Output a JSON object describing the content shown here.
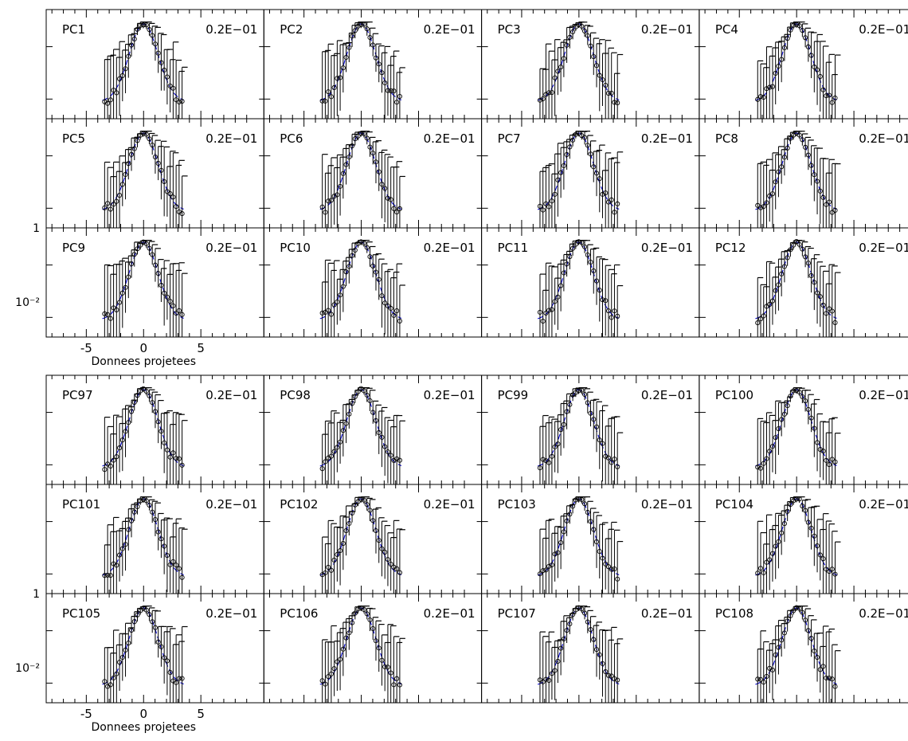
{
  "chart_data": {
    "type": "scatter",
    "description_scale": "log",
    "xlim": [
      -8.5,
      10.5
    ],
    "x_ticks": [
      "-5",
      "0",
      "5"
    ],
    "y_ticks": [
      "1",
      "10⁻²"
    ],
    "xlabel": "Donnees projetees",
    "corner_label": "0.2E−01",
    "colors": {
      "data": "#000000",
      "model": "#0000cc",
      "frame": "#000000"
    },
    "blocks": [
      {
        "panels": [
          "PC1",
          "PC2",
          "PC3",
          "PC4",
          "PC5",
          "PC6",
          "PC7",
          "PC8",
          "PC9",
          "PC10",
          "PC11",
          "PC12"
        ]
      },
      {
        "panels": [
          "PC97",
          "PC98",
          "PC99",
          "PC100",
          "PC101",
          "PC102",
          "PC103",
          "PC104",
          "PC105",
          "PC106",
          "PC107",
          "PC108"
        ]
      }
    ],
    "series": [
      {
        "name": "",
        "style": "open circles with vertical error bars"
      },
      {
        "name": "",
        "style": "dashed blue Gaussian curve"
      }
    ]
  }
}
